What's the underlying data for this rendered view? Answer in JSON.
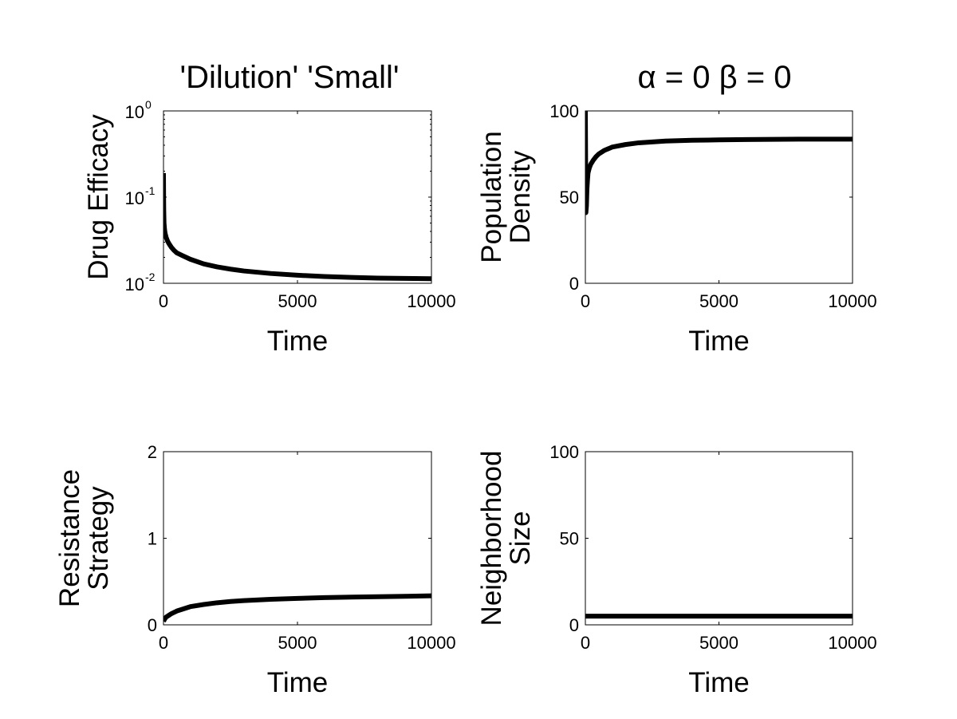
{
  "figure": {
    "left_title": "'Dilution' 'Small'",
    "right_title": "α = 0 β = 0"
  },
  "chart_data": [
    {
      "id": "drug-efficacy",
      "type": "line",
      "xlabel": "Time",
      "ylabel": [
        "Drug Efficacy"
      ],
      "xlim": [
        0,
        10000
      ],
      "ylim": [
        0.01,
        1
      ],
      "yscale": "log",
      "xticks": [
        0,
        5000,
        10000
      ],
      "xtick_labels": [
        "0",
        "5000",
        "10000"
      ],
      "yticks": [
        0.01,
        0.1,
        1
      ],
      "ytick_labels": [
        {
          "base": "10",
          "exp": "-2"
        },
        {
          "base": "10",
          "exp": "-1"
        },
        {
          "base": "10",
          "exp": "0"
        }
      ],
      "grid": false,
      "color": "#000000",
      "series": [
        {
          "x": [
            0,
            5,
            10,
            20,
            40,
            60,
            80,
            100,
            150,
            200,
            300,
            400,
            500,
            700,
            1000,
            1500,
            2000,
            2500,
            3000,
            4000,
            5000,
            6000,
            7000,
            8000,
            9000,
            10000
          ],
          "y": [
            0.19,
            0.1,
            0.07,
            0.05,
            0.042,
            0.038,
            0.036,
            0.034,
            0.031,
            0.029,
            0.026,
            0.024,
            0.0225,
            0.021,
            0.019,
            0.0168,
            0.0155,
            0.0146,
            0.0139,
            0.013,
            0.0124,
            0.012,
            0.0117,
            0.0115,
            0.0114,
            0.0113
          ]
        }
      ]
    },
    {
      "id": "population-density",
      "type": "line",
      "xlabel": "Time",
      "ylabel": [
        "Population",
        "Density"
      ],
      "xlim": [
        0,
        10000
      ],
      "ylim": [
        0,
        100
      ],
      "yscale": "linear",
      "xticks": [
        0,
        5000,
        10000
      ],
      "xtick_labels": [
        "0",
        "5000",
        "10000"
      ],
      "yticks": [
        0,
        50,
        100
      ],
      "ytick_labels": [
        "0",
        "50",
        "100"
      ],
      "grid": false,
      "color": "#000000",
      "series": [
        {
          "x": [
            0,
            20,
            40,
            60,
            80,
            100,
            150,
            200,
            300,
            400,
            500,
            700,
            1000,
            1500,
            2000,
            3000,
            4000,
            5000,
            6000,
            7000,
            8000,
            9000,
            10000
          ],
          "y": [
            100,
            41,
            45,
            55,
            60,
            64,
            67,
            69,
            71.5,
            73.5,
            75,
            77,
            79,
            80.5,
            81.5,
            82.5,
            83,
            83.2,
            83.4,
            83.5,
            83.6,
            83.6,
            83.6
          ]
        }
      ]
    },
    {
      "id": "resistance-strategy",
      "type": "line",
      "xlabel": "Time",
      "ylabel": [
        "Resistance",
        "Strategy"
      ],
      "xlim": [
        0,
        10000
      ],
      "ylim": [
        0,
        2
      ],
      "yscale": "linear",
      "xticks": [
        0,
        5000,
        10000
      ],
      "xtick_labels": [
        "0",
        "5000",
        "10000"
      ],
      "yticks": [
        0,
        1,
        2
      ],
      "ytick_labels": [
        "0",
        "1",
        "2"
      ],
      "grid": false,
      "color": "#000000",
      "series": [
        {
          "x": [
            0,
            50,
            100,
            200,
            300,
            500,
            700,
            1000,
            1500,
            2000,
            2500,
            3000,
            4000,
            5000,
            6000,
            7000,
            8000,
            9000,
            10000
          ],
          "y": [
            0.04,
            0.07,
            0.09,
            0.11,
            0.13,
            0.16,
            0.18,
            0.21,
            0.235,
            0.255,
            0.27,
            0.28,
            0.295,
            0.305,
            0.315,
            0.32,
            0.325,
            0.33,
            0.335
          ]
        }
      ]
    },
    {
      "id": "neighborhood-size",
      "type": "line",
      "xlabel": "Time",
      "ylabel": [
        "Neighborhood",
        "Size"
      ],
      "xlim": [
        0,
        10000
      ],
      "ylim": [
        0,
        100
      ],
      "yscale": "linear",
      "xticks": [
        0,
        5000,
        10000
      ],
      "xtick_labels": [
        "0",
        "5000",
        "10000"
      ],
      "yticks": [
        0,
        50,
        100
      ],
      "ytick_labels": [
        "0",
        "50",
        "100"
      ],
      "grid": false,
      "color": "#000000",
      "series": [
        {
          "x": [
            0,
            10000
          ],
          "y": [
            5,
            5
          ]
        }
      ]
    }
  ]
}
